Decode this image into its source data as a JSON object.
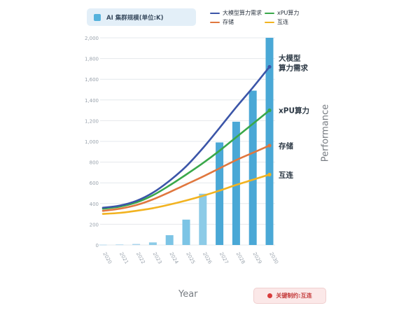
{
  "legend_box": {
    "label": "AI 集群规模(单位:K)",
    "color": "#56b2dc"
  },
  "line_legend": [
    {
      "label": "大模型算力需求",
      "color": "#3b55a8"
    },
    {
      "label": "xPU算力",
      "color": "#3aa84a"
    },
    {
      "label": "存储",
      "color": "#e0773e"
    },
    {
      "label": "互连",
      "color": "#f2b320"
    }
  ],
  "axis_titles": {
    "x": "Year",
    "y": "Performance"
  },
  "constraint": {
    "text": "关键制约:互连",
    "color": "#d93c3c"
  },
  "chart_data": {
    "type": "bar",
    "categories": [
      "2020",
      "2021",
      "2022",
      "2023",
      "2024",
      "2025",
      "2026",
      "2027",
      "2028",
      "2029",
      "2030"
    ],
    "series": [
      {
        "name": "AI 集群规模(单位:K)",
        "type": "bar",
        "values": [
          3,
          5,
          10,
          25,
          95,
          245,
          495,
          990,
          1190,
          1490,
          2000
        ],
        "colors": [
          "#a9d5ec",
          "#a9d5ec",
          "#a9d5ec",
          "#8ccbe7",
          "#7cc4e5",
          "#7cc4e5",
          "#8ccbe7",
          "#4aa8d6",
          "#4aa8d6",
          "#4aa8d6",
          "#4aa8d6"
        ]
      },
      {
        "name": "大模型算力需求",
        "type": "line",
        "color": "#3b55a8",
        "values": [
          360,
          380,
          425,
          505,
          620,
          760,
          935,
          1130,
          1330,
          1520,
          1720
        ]
      },
      {
        "name": "xPU算力",
        "type": "line",
        "color": "#3aa84a",
        "values": [
          350,
          370,
          410,
          480,
          575,
          680,
          790,
          910,
          1040,
          1170,
          1300
        ]
      },
      {
        "name": "存储",
        "type": "line",
        "color": "#e0773e",
        "values": [
          330,
          350,
          385,
          440,
          510,
          585,
          660,
          740,
          820,
          890,
          960
        ]
      },
      {
        "name": "互连",
        "type": "line",
        "color": "#f2b320",
        "values": [
          300,
          310,
          330,
          355,
          390,
          430,
          475,
          525,
          580,
          630,
          680
        ]
      }
    ],
    "end_labels": [
      {
        "series": "大模型算力需求",
        "lines": [
          "大模型",
          "算力需求"
        ]
      },
      {
        "series": "xPU算力",
        "lines": [
          "xPU算力"
        ]
      },
      {
        "series": "存储",
        "lines": [
          "存储"
        ]
      },
      {
        "series": "互连",
        "lines": [
          "互连"
        ]
      }
    ],
    "xlabel": "Year",
    "ylabel": "Performance",
    "ylim": [
      0,
      2000
    ],
    "yticks": [
      0,
      200,
      400,
      600,
      800,
      1000,
      1200,
      1400,
      1600,
      1800,
      2000
    ],
    "ytick_labels": [
      "0",
      "200",
      "400",
      "600",
      "800",
      "1,000",
      "1,200",
      "1,400",
      "1,600",
      "1,800",
      "2,000"
    ],
    "grid": true,
    "legend_placement": "top"
  }
}
